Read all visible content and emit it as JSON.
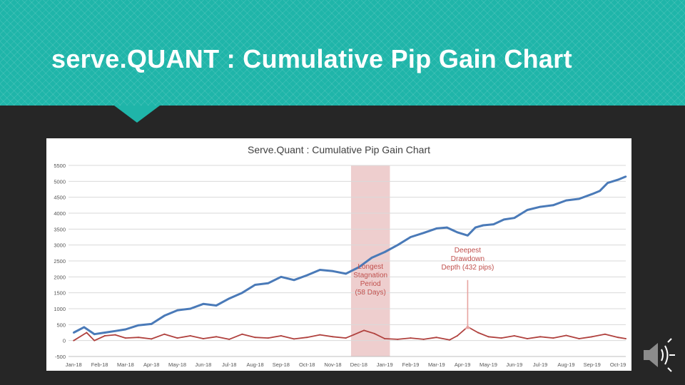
{
  "slide": {
    "title": "serve.QUANT : Cumulative Pip Gain Chart"
  },
  "colors": {
    "header_teal": "#1fb5a9",
    "background": "#262626",
    "cumulative_line": "#4a7ab8",
    "drawdown_line": "#b0413e",
    "stagnation_shade": "#e8bdbd",
    "annotation": "#c0504d"
  },
  "chart_data": {
    "type": "line",
    "title": "Serve.Quant : Cumulative Pip Gain Chart",
    "ylim": [
      -500,
      5500
    ],
    "yticks": [
      "5500",
      "5000",
      "4500",
      "4000",
      "3500",
      "3000",
      "2500",
      "2000",
      "1500",
      "1000",
      "500",
      "0",
      "-500"
    ],
    "yticks_values": [
      5500,
      5000,
      4500,
      4000,
      3500,
      3000,
      2500,
      2000,
      1500,
      1000,
      500,
      0,
      -500
    ],
    "x_tick_labels": [
      "Jan-18",
      "Feb-18",
      "Mar-18",
      "Apr-18",
      "May-18",
      "Jun-18",
      "Jul-18",
      "Aug-18",
      "Sep-18",
      "Oct-18",
      "Nov-18",
      "Dec-18",
      "Jan-19",
      "Feb-19",
      "Mar-19",
      "Apr-19",
      "May-19",
      "Jun-19",
      "Jul-19",
      "Aug-19",
      "Sep-19",
      "Oct-19"
    ],
    "grid": true,
    "series": [
      {
        "color": "#4a7ab8",
        "x": [
          0,
          0.4,
          0.8,
          1.2,
          1.6,
          2.0,
          2.5,
          3.0,
          3.5,
          4.0,
          4.5,
          5.0,
          5.5,
          6.0,
          6.5,
          7.0,
          7.5,
          8.0,
          8.5,
          9.0,
          9.5,
          10.0,
          10.5,
          11.0,
          11.5,
          12.0,
          12.5,
          13.0,
          13.5,
          14.0,
          14.4,
          14.8,
          15.2,
          15.5,
          15.8,
          16.2,
          16.6,
          17.0,
          17.5,
          18.0,
          18.5,
          19.0,
          19.5,
          20.0,
          20.3,
          20.6,
          21.0,
          21.3
        ],
        "values": [
          250,
          420,
          200,
          250,
          300,
          350,
          480,
          520,
          780,
          950,
          1000,
          1150,
          1100,
          1320,
          1500,
          1750,
          1800,
          2000,
          1900,
          2050,
          2220,
          2180,
          2100,
          2300,
          2600,
          2780,
          3000,
          3250,
          3380,
          3520,
          3550,
          3400,
          3300,
          3550,
          3620,
          3650,
          3800,
          3850,
          4100,
          4200,
          4250,
          4400,
          4450,
          4600,
          4700,
          4950,
          5050,
          5150
        ]
      },
      {
        "color": "#b0413e",
        "x": [
          0,
          0.5,
          0.8,
          1.2,
          1.6,
          2.0,
          2.5,
          3.0,
          3.5,
          4.0,
          4.5,
          5.0,
          5.5,
          6.0,
          6.5,
          7.0,
          7.5,
          8.0,
          8.5,
          9.0,
          9.5,
          10.0,
          10.5,
          10.8,
          11.2,
          11.6,
          12.0,
          12.5,
          13.0,
          13.5,
          14.0,
          14.5,
          14.8,
          15.2,
          15.6,
          16.0,
          16.5,
          17.0,
          17.5,
          18.0,
          18.5,
          19.0,
          19.5,
          20.0,
          20.5,
          21.0,
          21.3
        ],
        "values": [
          0,
          250,
          0,
          150,
          180,
          80,
          100,
          50,
          200,
          80,
          150,
          60,
          120,
          40,
          200,
          100,
          80,
          150,
          50,
          100,
          180,
          120,
          80,
          180,
          320,
          220,
          60,
          40,
          80,
          40,
          100,
          20,
          150,
          432,
          250,
          120,
          80,
          150,
          60,
          120,
          80,
          160,
          60,
          120,
          200,
          100,
          60
        ]
      }
    ],
    "stagnation_period": {
      "start": 10.7,
      "end": 12.2
    },
    "annotations": [
      {
        "text": [
          "Longest",
          "Stagnation",
          "Period",
          "(58 Days)"
        ],
        "x": 11.45,
        "y": 1850
      },
      {
        "text": [
          "Deepest",
          "Drawdown",
          "Depth (432 pips)"
        ],
        "x": 15.2,
        "y": 2500,
        "arrow_from_y": 1900,
        "arrow_to_y": 500
      }
    ]
  },
  "speaker_icon": "speaker-icon"
}
